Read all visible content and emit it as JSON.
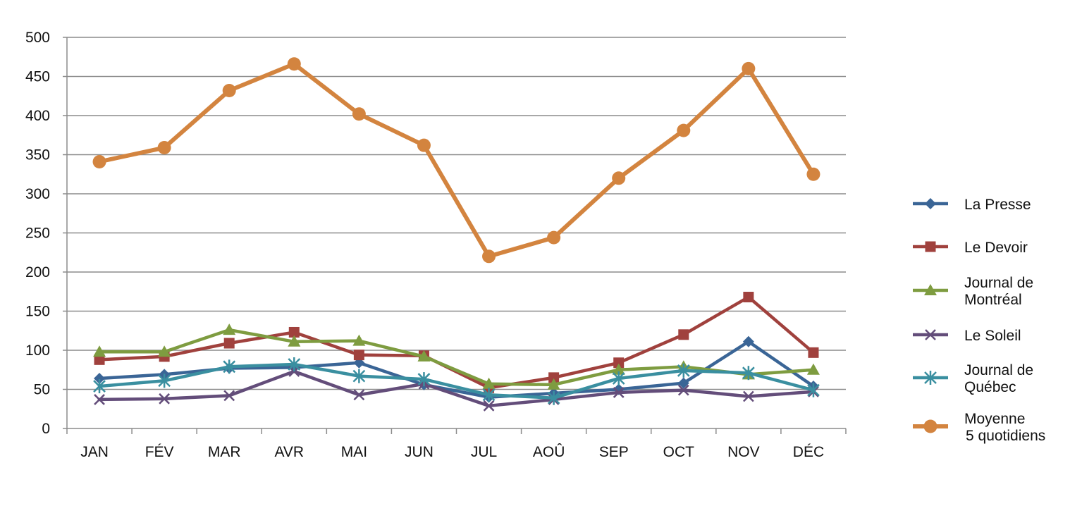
{
  "chart_data": {
    "type": "line",
    "title": "",
    "xlabel": "",
    "ylabel": "",
    "ylim": [
      0,
      500
    ],
    "yticks": [
      0,
      50,
      100,
      150,
      200,
      250,
      300,
      350,
      400,
      450,
      500
    ],
    "grid": "horizontal",
    "legend_position": "right",
    "categories": [
      "JAN",
      "FÉV",
      "MAR",
      "AVR",
      "MAI",
      "JUN",
      "JUL",
      "AOÛ",
      "SEP",
      "OCT",
      "NOV",
      "DÉC"
    ],
    "series": [
      {
        "name": "La Presse",
        "legend_lines": [
          "La Presse"
        ],
        "color": "#3A6596",
        "marker": "diamond",
        "values": [
          64,
          69,
          77,
          78,
          84,
          56,
          40,
          45,
          50,
          58,
          111,
          54
        ]
      },
      {
        "name": "Le Devoir",
        "legend_lines": [
          "Le Devoir"
        ],
        "color": "#A0413D",
        "marker": "square",
        "values": [
          88,
          92,
          109,
          123,
          94,
          93,
          52,
          65,
          84,
          120,
          168,
          97
        ]
      },
      {
        "name": "Journal de Montréal",
        "legend_lines": [
          "Journal de",
          "Montréal"
        ],
        "color": "#7E9C40",
        "marker": "triangle",
        "values": [
          98,
          98,
          126,
          111,
          112,
          92,
          57,
          56,
          75,
          79,
          69,
          75
        ]
      },
      {
        "name": "Le Soleil",
        "legend_lines": [
          "Le Soleil"
        ],
        "color": "#634D7A",
        "marker": "x",
        "values": [
          37,
          38,
          42,
          73,
          43,
          57,
          29,
          37,
          46,
          49,
          41,
          47
        ]
      },
      {
        "name": "Journal de Québec",
        "legend_lines": [
          "Journal de",
          "Québec"
        ],
        "color": "#3A8FA0",
        "marker": "asterisk",
        "values": [
          54,
          61,
          79,
          82,
          67,
          63,
          43,
          39,
          64,
          74,
          71,
          49
        ]
      },
      {
        "name": "Moyenne 5 quotidiens",
        "legend_lines": [
          "Moyenne",
          "5 quotidiens"
        ],
        "color": "#D3843F",
        "marker": "circle",
        "values": [
          341,
          359,
          432,
          466,
          402,
          362,
          220,
          244,
          320,
          381,
          460,
          325
        ]
      }
    ]
  }
}
